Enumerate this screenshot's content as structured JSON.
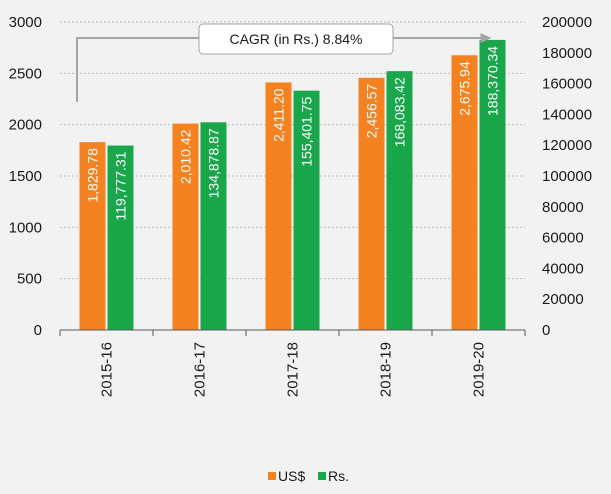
{
  "chart_data": {
    "type": "bar",
    "title": "",
    "xlabel": "",
    "categories": [
      "2015-16",
      "2016-17",
      "2017-18",
      "2018-19",
      "2019-20"
    ],
    "series": [
      {
        "name": "US$",
        "axis": "left",
        "color": "#f58220",
        "values": [
          1829.78,
          2010.42,
          2411.2,
          2456.57,
          2675.94
        ],
        "labels": [
          "1,829.78",
          "2,010.42",
          "2,411.20",
          "2,456.57",
          "2,675.94"
        ]
      },
      {
        "name": "Rs.",
        "axis": "right",
        "color": "#1aa64b",
        "values": [
          119777.31,
          134878.87,
          155401.75,
          168083.42,
          188370.34
        ],
        "labels": [
          "119,777.31",
          "134,878.87",
          "155,401.75",
          "168,083.42",
          "188,370.34"
        ]
      }
    ],
    "y_left": {
      "range": [
        0,
        3000
      ],
      "ticks": [
        0,
        500,
        1000,
        1500,
        2000,
        2500,
        3000
      ],
      "tick_labels": [
        "0",
        "500",
        "1000",
        "1500",
        "2000",
        "2500",
        "3000"
      ]
    },
    "y_right": {
      "range": [
        0,
        200000
      ],
      "ticks": [
        0,
        20000,
        40000,
        60000,
        80000,
        100000,
        120000,
        140000,
        160000,
        180000,
        200000
      ],
      "tick_labels": [
        "0",
        "20000",
        "40000",
        "60000",
        "80000",
        "100000",
        "120000",
        "140000",
        "160000",
        "180000",
        "200000"
      ]
    },
    "grid": true,
    "legend": "bottom-center",
    "annotation": "CAGR (in Rs.) 8.84%"
  }
}
